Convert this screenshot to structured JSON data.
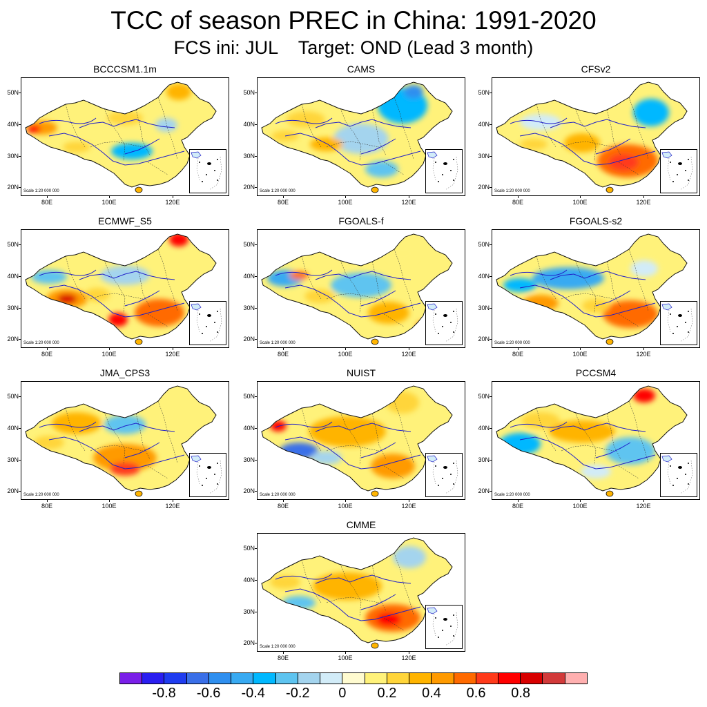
{
  "title": "TCC of season PREC in China: 1991-2020",
  "subtitle": "FCS ini: JUL    Target: OND (Lead 3 month)",
  "axes": {
    "lat_ticks": [
      "20N",
      "30N",
      "40N",
      "50N"
    ],
    "lon_ticks": [
      "80E",
      "100E",
      "120E"
    ]
  },
  "scale_label": "Scale 1:20 000 000",
  "panels": [
    {
      "name": "BCCCSM1.1m",
      "pattern": 0
    },
    {
      "name": "CAMS",
      "pattern": 1
    },
    {
      "name": "CFSv2",
      "pattern": 2
    },
    {
      "name": "ECMWF_S5",
      "pattern": 3
    },
    {
      "name": "FGOALS-f",
      "pattern": 4
    },
    {
      "name": "FGOALS-s2",
      "pattern": 5
    },
    {
      "name": "JMA_CPS3",
      "pattern": 6
    },
    {
      "name": "NUIST",
      "pattern": 7
    },
    {
      "name": "PCCSM4",
      "pattern": 8
    },
    {
      "name": "CMME",
      "pattern": 9
    }
  ],
  "colorbar": {
    "colors": [
      "#7a1fe8",
      "#2a1ef0",
      "#1f3cf0",
      "#3a6fe8",
      "#2f8fef",
      "#38aaf2",
      "#00b8ff",
      "#5ec4f0",
      "#a4d4ee",
      "#d2ecf8",
      "#fffbd0",
      "#fff27a",
      "#ffd53a",
      "#ffb400",
      "#ff9a00",
      "#ff6a00",
      "#ff3a1a",
      "#ff0000",
      "#d80000",
      "#d23a3a",
      "#ffb0b0"
    ],
    "labels": [
      "-0.8",
      "-0.6",
      "-0.4",
      "-0.2",
      "0",
      "0.2",
      "0.4",
      "0.6",
      "0.8"
    ]
  }
}
